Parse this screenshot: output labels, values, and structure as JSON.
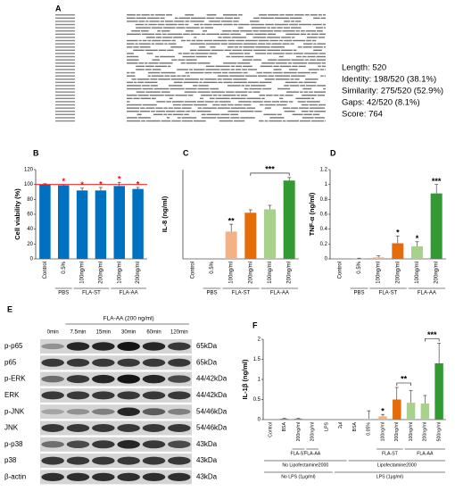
{
  "panels": [
    "A",
    "B",
    "C",
    "D",
    "E",
    "F"
  ],
  "alignment_stats": [
    "Length: 520",
    "Identity: 198/520 (38.1%)",
    "Similarity: 275/520 (52.9%)",
    "Gaps: 42/520 (8.1%)",
    "Score: 764"
  ],
  "blot": {
    "header": "FLA-AA (200 ng/ml)",
    "times": [
      "0min",
      "7.5min",
      "15min",
      "30min",
      "60min",
      "120min"
    ],
    "rows": [
      {
        "label": "p-p65",
        "size": "65kDa"
      },
      {
        "label": "p65",
        "size": "65kDa"
      },
      {
        "label": "p-ERK",
        "size": "44/42kDa"
      },
      {
        "label": "ERK",
        "size": "44/42kDa"
      },
      {
        "label": "p-JNK",
        "size": "54/46kDa"
      },
      {
        "label": "JNK",
        "size": "54/46kDa"
      },
      {
        "label": "p-p38",
        "size": "43kDa"
      },
      {
        "label": "p38",
        "size": "43kDa"
      },
      {
        "label": "β-actin",
        "size": "43kDa"
      }
    ]
  },
  "chart_data": [
    {
      "type": "bar",
      "ylabel": "Cell viability (%)",
      "categories": [
        "Control",
        "0.5%",
        "100ng/ml",
        "200ng/ml",
        "100ng/ml",
        "200ng/ml"
      ],
      "values": [
        100,
        99,
        92,
        92,
        98,
        94
      ],
      "errors": [
        1,
        1,
        3,
        4,
        5,
        2
      ],
      "color": "#0070c0",
      "ylim": [
        0,
        120
      ],
      "yticks": [
        0,
        20,
        40,
        60,
        80,
        100,
        120
      ],
      "reference_line": 100,
      "reference_color": "#ff0000",
      "annotations": [
        {
          "text": "*",
          "at": 1,
          "color": "#ff0000"
        },
        {
          "text": "*",
          "at": 2,
          "color": "#ff0000"
        },
        {
          "text": "*",
          "at": 3,
          "color": "#ff0000"
        },
        {
          "text": "*",
          "at": 4,
          "color": "#ff0000"
        },
        {
          "text": "*",
          "at": 5,
          "color": "#ff0000"
        }
      ],
      "groups": [
        {
          "label": "PBS",
          "start": 1,
          "end": 1,
          "level": 0
        },
        {
          "label": "FLA-ST",
          "start": 2,
          "end": 3,
          "level": 0
        },
        {
          "label": "FLA-AA",
          "start": 4,
          "end": 5,
          "level": 0
        }
      ]
    },
    {
      "type": "bar",
      "ylabel": "IL-8 (ng/ml)",
      "categories": [
        "Control",
        "0.5%",
        "100ng/ml",
        "200ng/ml",
        "100ng/ml",
        "200ng/ml"
      ],
      "values": [
        0,
        0,
        5.5,
        9.3,
        10,
        15.8
      ],
      "errors": [
        0,
        0,
        1.5,
        0.6,
        0.8,
        0.6
      ],
      "colors": [
        "#ffffff",
        "#ffffff",
        "#f4b183",
        "#e46c0a",
        "#a9d18e",
        "#339933"
      ],
      "ylim": [
        0,
        18
      ],
      "annotations": [
        {
          "text": "**",
          "at": 2
        },
        {
          "text": "***",
          "from": 3,
          "to": 5
        }
      ],
      "groups": [
        {
          "label": "PBS",
          "start": 1,
          "end": 1,
          "level": 0
        },
        {
          "label": "FLA-ST",
          "start": 2,
          "end": 3,
          "level": 0
        },
        {
          "label": "FLA-AA",
          "start": 4,
          "end": 5,
          "level": 0
        }
      ]
    },
    {
      "type": "bar",
      "ylabel": "TNF-α (ng/ml)",
      "categories": [
        "Control",
        "0.5%",
        "100ng/ml",
        "200ng/ml",
        "100ng/ml",
        "200ng/ml"
      ],
      "values": [
        0,
        0.005,
        0.02,
        0.21,
        0.17,
        0.88
      ],
      "errors": [
        0,
        0.005,
        0.02,
        0.1,
        0.06,
        0.12
      ],
      "colors": [
        "#ffffff",
        "#ffffff",
        "#f4b183",
        "#e46c0a",
        "#a9d18e",
        "#339933"
      ],
      "ylim": [
        0,
        1.2
      ],
      "yticks": [
        0,
        0.2,
        0.4,
        0.6,
        0.8,
        1,
        1.2
      ],
      "annotations": [
        {
          "text": "*",
          "at": 3
        },
        {
          "text": "*",
          "at": 4
        },
        {
          "text": "***",
          "at": 5
        }
      ],
      "groups": [
        {
          "label": "PBS",
          "start": 1,
          "end": 1,
          "level": 0
        },
        {
          "label": "FLA-ST",
          "start": 2,
          "end": 3,
          "level": 0
        },
        {
          "label": "FLA-AA",
          "start": 4,
          "end": 5,
          "level": 0
        }
      ]
    },
    {
      "type": "bar",
      "ylabel": "IL-1β (ng/ml)",
      "categories": [
        "Control",
        "BSA",
        "200ng/ml",
        "200ng/ml",
        "LPS",
        "2μl",
        "BSA",
        "0.05%",
        "100ng/ml",
        "200ng/ml",
        "100ng/ml",
        "200ng/ml",
        "500ng/ml"
      ],
      "values": [
        0.01,
        0.02,
        0.02,
        0.01,
        0.01,
        0.005,
        0.01,
        0.02,
        0.08,
        0.5,
        0.42,
        0.4,
        1.4
      ],
      "errors": [
        0,
        0.01,
        0.01,
        0,
        0,
        0,
        0,
        0.2,
        0.05,
        0.3,
        0.3,
        0.2,
        0.5
      ],
      "colors": [
        "#4a90c8",
        "#4a90c8",
        "#4a90c8",
        "#4a90c8",
        "#4a90c8",
        "#4a90c8",
        "#4a90c8",
        "#f4b183",
        "#f4b183",
        "#e46c0a",
        "#a9d18e",
        "#a9d18e",
        "#339933"
      ],
      "ylim": [
        0,
        2
      ],
      "yticks": [
        0,
        0.5,
        1,
        1.5,
        2
      ],
      "annotations": [
        {
          "text": "*",
          "at": 8
        },
        {
          "text": "**",
          "from": 9,
          "to": 10
        },
        {
          "text": "***",
          "from": 11,
          "to": 12
        }
      ],
      "groups": [
        {
          "label": "FLA-ST",
          "start": 2,
          "end": 2,
          "level": 0
        },
        {
          "label": "FLA-AA",
          "start": 3,
          "end": 3,
          "level": 0
        },
        {
          "label": "FLA-ST",
          "start": 8,
          "end": 9,
          "level": 0
        },
        {
          "label": "FLA-AA",
          "start": 10,
          "end": 12,
          "level": 0
        },
        {
          "label": "No Lipofectamine2000",
          "start": 0,
          "end": 5,
          "level": 1
        },
        {
          "label": "Lipofectamine2000",
          "start": 6,
          "end": 12,
          "level": 1
        },
        {
          "label": "No LPS (1μg/ml)",
          "start": 0,
          "end": 4,
          "level": 2
        },
        {
          "label": "LPS (1μg/ml)",
          "start": 5,
          "end": 12,
          "level": 2
        }
      ]
    }
  ]
}
